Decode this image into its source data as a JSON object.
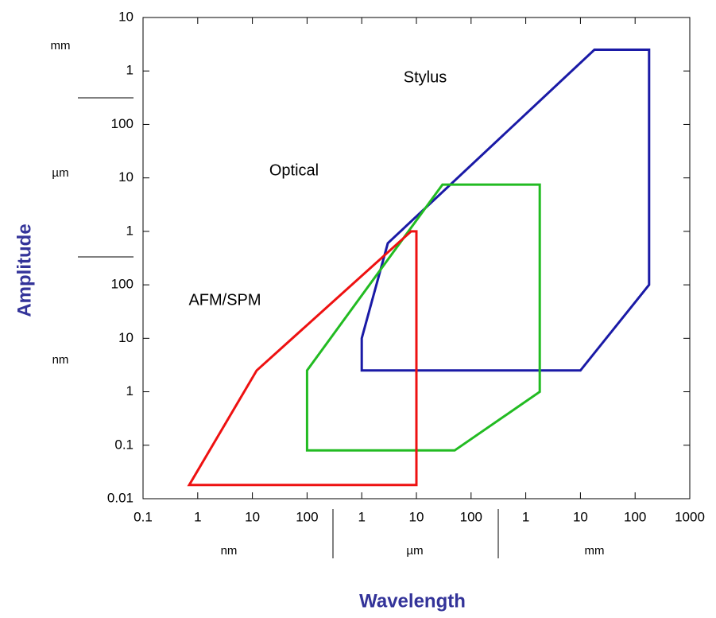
{
  "chart_data": {
    "type": "polygon",
    "x_label": "Wavelength",
    "y_label": "Amplitude",
    "x_log": true,
    "y_log": true,
    "xlim": [
      0.1,
      1000000000
    ],
    "ylim": [
      0.01,
      10000000
    ],
    "xticks": [
      0.1,
      1,
      10,
      100,
      {
        "value": 1000,
        "label": "1"
      },
      {
        "value": 10000,
        "label": "10"
      },
      {
        "value": 100000,
        "label": "100"
      },
      {
        "value": 1000000,
        "label": "1"
      },
      {
        "value": 10000000,
        "label": "10"
      },
      {
        "value": 100000000,
        "label": "100"
      },
      {
        "value": 1000000000,
        "label": "1000"
      }
    ],
    "yticks": [
      0.01,
      0.1,
      1,
      10,
      100,
      {
        "value": 1000,
        "label": "1"
      },
      {
        "value": 10000,
        "label": "10"
      },
      {
        "value": 100000,
        "label": "100"
      },
      {
        "value": 1000000,
        "label": "1"
      },
      {
        "value": 10000000,
        "label": "10"
      }
    ],
    "x_units": [
      "nm",
      "µm",
      "mm"
    ],
    "y_units": [
      "mm",
      "µm",
      "nm"
    ],
    "series": [
      {
        "name": "Stylus",
        "color": "#1a1aa6",
        "x": [
          1000,
          1000,
          3000,
          18000000,
          180000000,
          180000000,
          10000000
        ],
        "values": [
          2.5,
          10,
          600,
          2500000,
          2500000,
          100,
          2.5
        ]
      },
      {
        "name": "Optical",
        "color": "#22bb22",
        "x": [
          100,
          100,
          30000,
          1800000,
          1800000,
          50000
        ],
        "values": [
          0.08,
          2.5,
          7500,
          7500,
          1,
          0.08
        ]
      },
      {
        "name": "AFM/SPM",
        "color": "#ee1111",
        "x": [
          0.7,
          12,
          8000,
          10000,
          10000
        ],
        "values": [
          0.018,
          2.5,
          1000,
          1000,
          0.018
        ]
      }
    ]
  }
}
